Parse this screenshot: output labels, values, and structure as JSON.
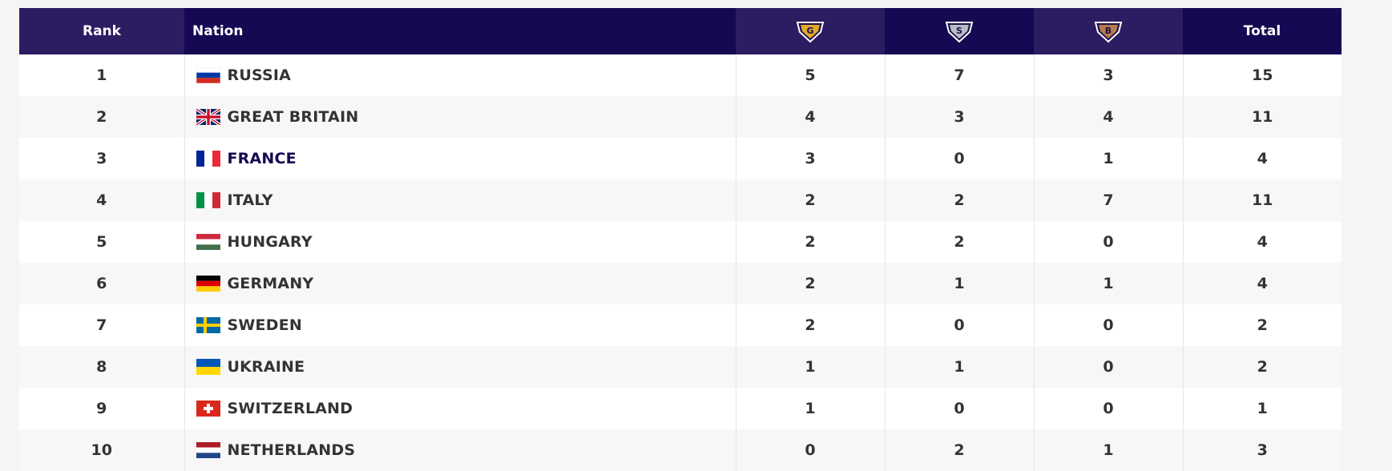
{
  "headers": {
    "rank": "Rank",
    "nation": "Nation",
    "gold_letter": "G",
    "silver_letter": "S",
    "bronze_letter": "B",
    "total": "Total"
  },
  "colors": {
    "header_dark": "#150953",
    "header_light": "#2c1d63",
    "gold": "#e3a92a",
    "silver": "#b8bcc6",
    "bronze": "#b87b4a",
    "highlight_text": "#150953"
  },
  "rows": [
    {
      "rank": "1",
      "nation": "RUSSIA",
      "flag": "russia-flag-icon",
      "gold": "5",
      "silver": "7",
      "bronze": "3",
      "total": "15"
    },
    {
      "rank": "2",
      "nation": "GREAT BRITAIN",
      "flag": "great-britain-flag-icon",
      "gold": "4",
      "silver": "3",
      "bronze": "4",
      "total": "11"
    },
    {
      "rank": "3",
      "nation": "FRANCE",
      "flag": "france-flag-icon",
      "gold": "3",
      "silver": "0",
      "bronze": "1",
      "total": "4"
    },
    {
      "rank": "4",
      "nation": "ITALY",
      "flag": "italy-flag-icon",
      "gold": "2",
      "silver": "2",
      "bronze": "7",
      "total": "11"
    },
    {
      "rank": "5",
      "nation": "HUNGARY",
      "flag": "hungary-flag-icon",
      "gold": "2",
      "silver": "2",
      "bronze": "0",
      "total": "4"
    },
    {
      "rank": "6",
      "nation": "GERMANY",
      "flag": "germany-flag-icon",
      "gold": "2",
      "silver": "1",
      "bronze": "1",
      "total": "4"
    },
    {
      "rank": "7",
      "nation": "SWEDEN",
      "flag": "sweden-flag-icon",
      "gold": "2",
      "silver": "0",
      "bronze": "0",
      "total": "2"
    },
    {
      "rank": "8",
      "nation": "UKRAINE",
      "flag": "ukraine-flag-icon",
      "gold": "1",
      "silver": "1",
      "bronze": "0",
      "total": "2"
    },
    {
      "rank": "9",
      "nation": "SWITZERLAND",
      "flag": "switzerland-flag-icon",
      "gold": "1",
      "silver": "0",
      "bronze": "0",
      "total": "1"
    },
    {
      "rank": "10",
      "nation": "NETHERLANDS",
      "flag": "netherlands-flag-icon",
      "gold": "0",
      "silver": "2",
      "bronze": "1",
      "total": "3"
    }
  ]
}
